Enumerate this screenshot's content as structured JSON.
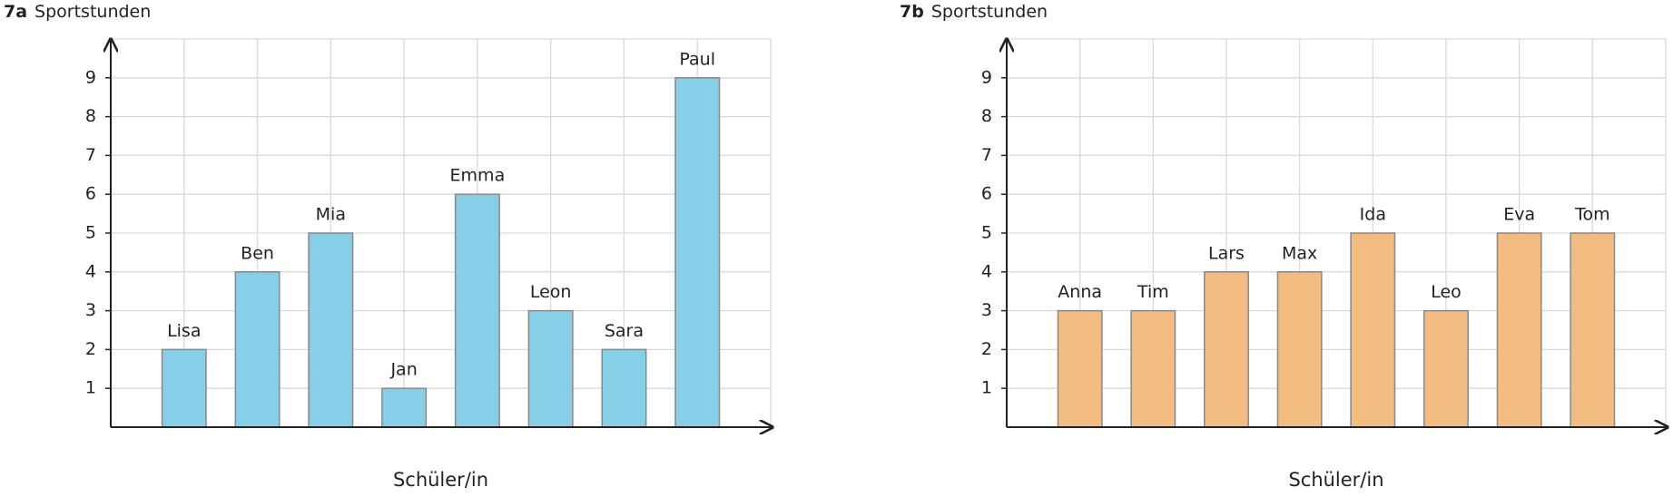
{
  "chart_data": [
    {
      "type": "bar",
      "label": "7a",
      "title": "Sportstunden",
      "x_label": "Schüler/in",
      "categories": [
        "Lisa",
        "Ben",
        "Mia",
        "Jan",
        "Emma",
        "Leon",
        "Sara",
        "Paul"
      ],
      "values": [
        2,
        4,
        5,
        1,
        6,
        3,
        2,
        9
      ],
      "color": "#87cfe8",
      "ylim": [
        0,
        10
      ],
      "yticks": [
        1,
        2,
        3,
        4,
        5,
        6,
        7,
        8,
        9
      ],
      "grid": true
    },
    {
      "type": "bar",
      "label": "7b",
      "title": "Sportstunden",
      "x_label": "Schüler/in",
      "categories": [
        "Anna",
        "Tim",
        "Lars",
        "Max",
        "Ida",
        "Leo",
        "Eva",
        "Tom"
      ],
      "values": [
        3,
        3,
        4,
        4,
        5,
        3,
        5,
        5
      ],
      "color": "#f2bb80",
      "ylim": [
        0,
        10
      ],
      "yticks": [
        1,
        2,
        3,
        4,
        5,
        6,
        7,
        8,
        9
      ],
      "grid": true
    }
  ]
}
